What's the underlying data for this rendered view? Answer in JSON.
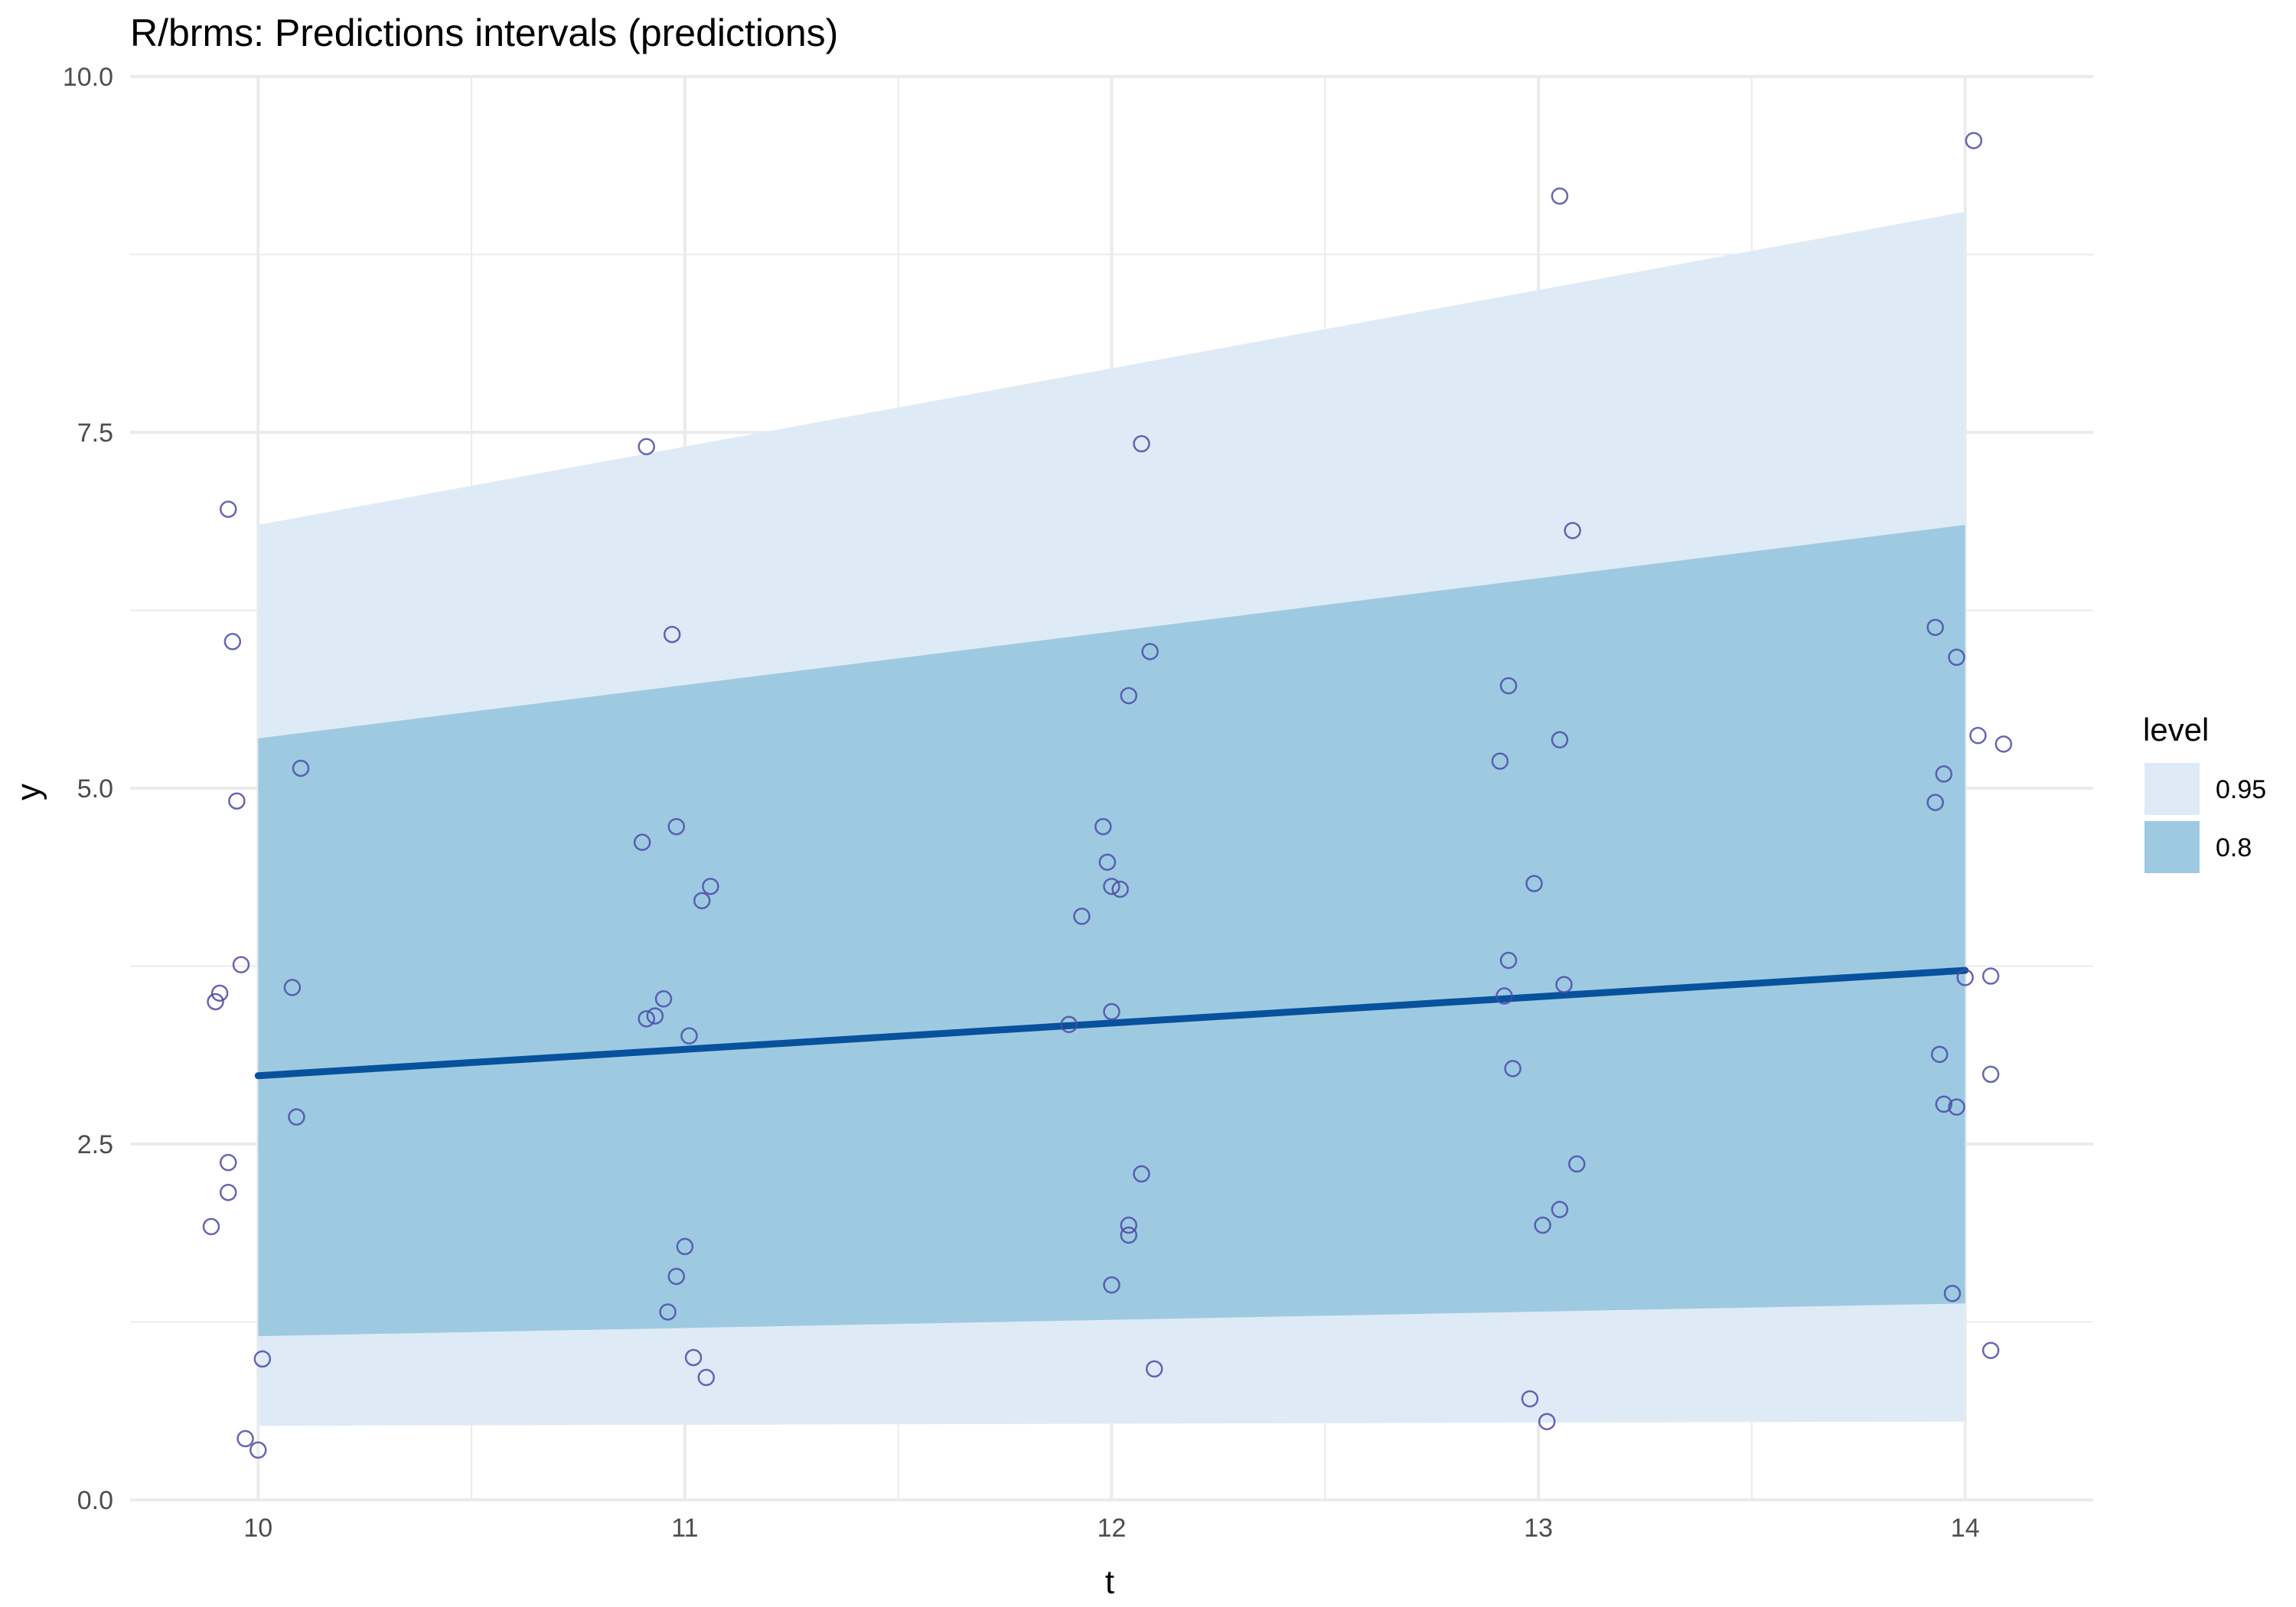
{
  "chart_data": {
    "type": "line",
    "title": "R/brms: Predictions intervals (predictions)",
    "xlabel": "t",
    "ylabel": "y",
    "xlim": [
      9.7,
      14.3
    ],
    "ylim": [
      0,
      10
    ],
    "x_ticks": [
      "10",
      "11",
      "12",
      "13",
      "14"
    ],
    "y_ticks": [
      "0.0",
      "2.5",
      "5.0",
      "7.5",
      "10.0"
    ],
    "grid": true,
    "legend": {
      "title": "level",
      "position": "right",
      "entries": [
        "0.95",
        "0.8"
      ]
    },
    "colors": {
      "band_95": "#deebf7",
      "band_80": "#9ecae1",
      "line": "#08519c",
      "points": "#4b4ba8"
    },
    "bands": [
      {
        "level": "0.95",
        "x": [
          10,
          14
        ],
        "lower": [
          0.52,
          0.55
        ],
        "upper": [
          6.85,
          9.05
        ]
      },
      {
        "level": "0.8",
        "x": [
          10,
          14
        ],
        "lower": [
          1.15,
          1.38
        ],
        "upper": [
          5.35,
          6.85
        ]
      }
    ],
    "line": {
      "x": [
        10,
        14
      ],
      "y": [
        2.98,
        3.72
      ]
    },
    "points": [
      [
        9.89,
        1.92
      ],
      [
        9.9,
        3.5
      ],
      [
        9.91,
        3.56
      ],
      [
        9.93,
        2.37
      ],
      [
        9.93,
        2.16
      ],
      [
        9.93,
        6.96
      ],
      [
        9.94,
        6.03
      ],
      [
        9.95,
        4.91
      ],
      [
        9.96,
        3.76
      ],
      [
        9.97,
        0.43
      ],
      [
        10.0,
        0.35
      ],
      [
        10.01,
        0.99
      ],
      [
        10.08,
        3.6
      ],
      [
        10.09,
        2.69
      ],
      [
        10.1,
        5.14
      ],
      [
        10.9,
        4.62
      ],
      [
        10.91,
        3.38
      ],
      [
        10.91,
        7.4
      ],
      [
        10.93,
        3.4
      ],
      [
        10.95,
        3.52
      ],
      [
        10.96,
        1.32
      ],
      [
        10.97,
        6.08
      ],
      [
        10.98,
        1.57
      ],
      [
        10.98,
        4.73
      ],
      [
        11.0,
        1.78
      ],
      [
        11.01,
        3.26
      ],
      [
        11.02,
        1.0
      ],
      [
        11.04,
        4.21
      ],
      [
        11.05,
        0.86
      ],
      [
        11.06,
        4.31
      ],
      [
        11.9,
        3.34
      ],
      [
        11.93,
        4.1
      ],
      [
        11.98,
        4.73
      ],
      [
        11.99,
        4.48
      ],
      [
        12.0,
        3.43
      ],
      [
        12.0,
        4.31
      ],
      [
        12.0,
        1.51
      ],
      [
        12.02,
        4.29
      ],
      [
        12.04,
        1.93
      ],
      [
        12.04,
        1.86
      ],
      [
        12.04,
        5.65
      ],
      [
        12.07,
        7.42
      ],
      [
        12.07,
        2.29
      ],
      [
        12.09,
        5.96
      ],
      [
        12.1,
        0.92
      ],
      [
        12.91,
        5.19
      ],
      [
        12.92,
        3.54
      ],
      [
        12.93,
        3.79
      ],
      [
        12.93,
        5.72
      ],
      [
        12.94,
        3.03
      ],
      [
        12.98,
        0.71
      ],
      [
        12.99,
        4.33
      ],
      [
        13.01,
        1.93
      ],
      [
        13.02,
        0.55
      ],
      [
        13.05,
        2.04
      ],
      [
        13.05,
        5.34
      ],
      [
        13.05,
        9.16
      ],
      [
        13.06,
        3.62
      ],
      [
        13.08,
        6.81
      ],
      [
        13.09,
        2.36
      ],
      [
        13.93,
        6.13
      ],
      [
        13.93,
        4.9
      ],
      [
        13.94,
        3.13
      ],
      [
        13.95,
        5.1
      ],
      [
        13.95,
        2.78
      ],
      [
        13.97,
        1.45
      ],
      [
        13.98,
        2.76
      ],
      [
        13.98,
        5.92
      ],
      [
        14.0,
        3.67
      ],
      [
        14.02,
        9.55
      ],
      [
        14.03,
        5.37
      ],
      [
        14.06,
        1.05
      ],
      [
        14.06,
        2.99
      ],
      [
        14.06,
        3.68
      ],
      [
        14.09,
        5.31
      ]
    ]
  }
}
